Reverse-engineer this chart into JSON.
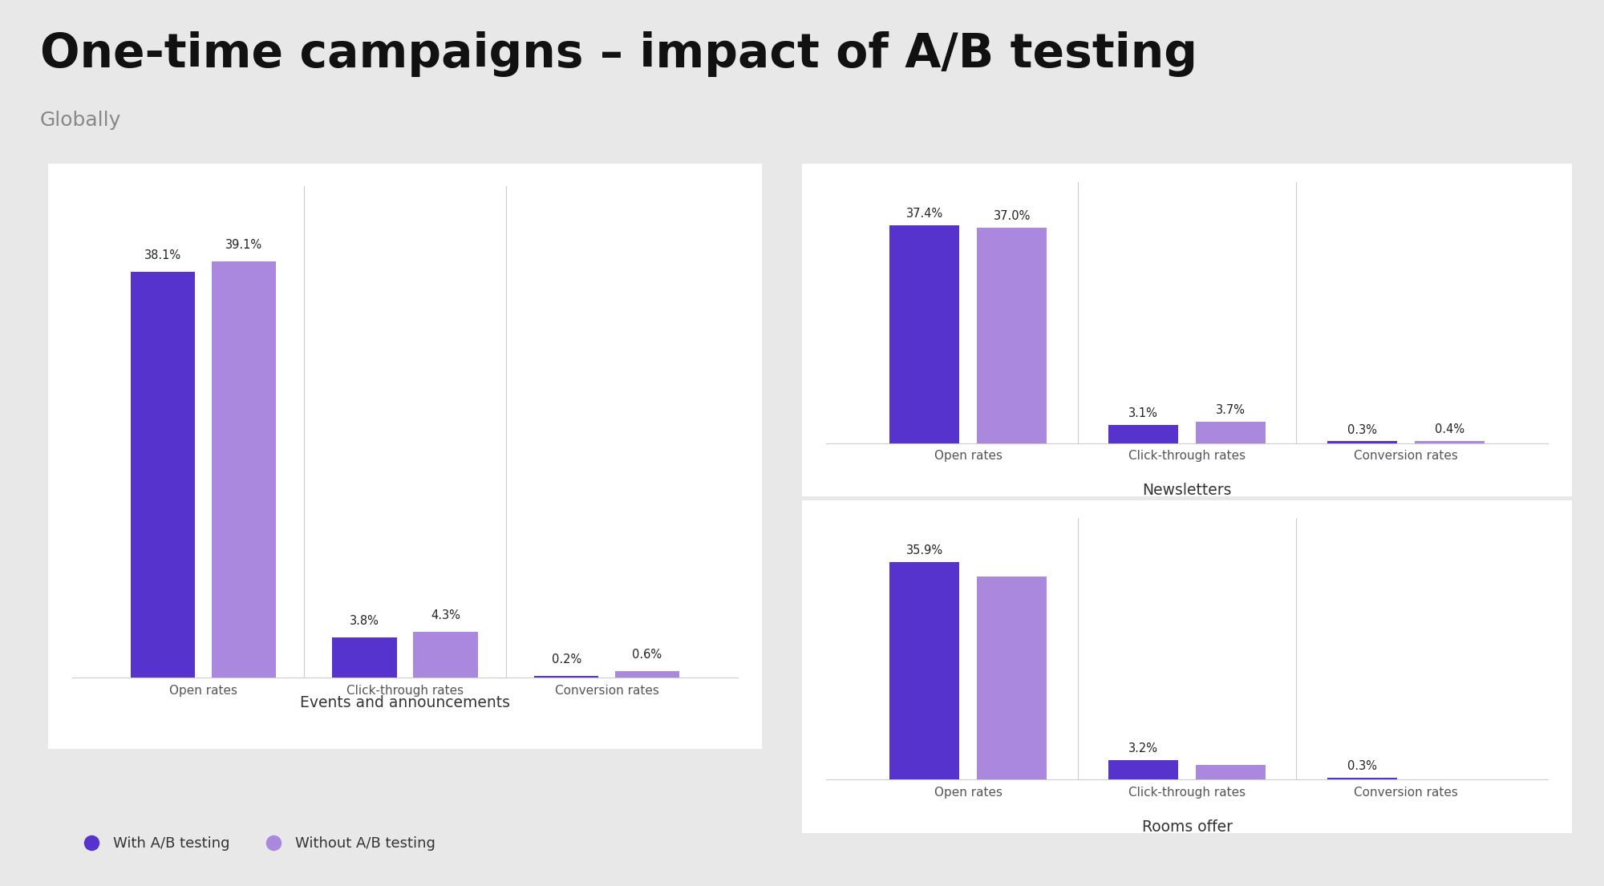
{
  "title": "One-time campaigns – impact of A/B testing",
  "subtitle": "Globally",
  "background_color": "#e8e8e8",
  "color_with": "#5533cc",
  "color_without": "#aa88dd",
  "legend_with": "With A/B testing",
  "legend_without": "Without A/B testing",
  "panels": [
    {
      "title": "Events and announcements",
      "groups": [
        "Open rates",
        "Click-through rates",
        "Conversion rates"
      ],
      "with_ab": [
        38.1,
        3.8,
        0.2
      ],
      "without_ab": [
        39.1,
        4.3,
        0.6
      ],
      "with_labels": [
        "38.1%",
        "3.8%",
        "0.2%"
      ],
      "without_labels": [
        "39.1%",
        "4.3%",
        "0.6%"
      ]
    },
    {
      "title": "Newsletters",
      "groups": [
        "Open rates",
        "Click-through rates",
        "Conversion rates"
      ],
      "with_ab": [
        37.4,
        3.1,
        0.3
      ],
      "without_ab": [
        37.0,
        3.7,
        0.4
      ],
      "with_labels": [
        "37.4%",
        "3.1%",
        "0.3%"
      ],
      "without_labels": [
        "37.0%",
        "3.7%",
        "0.4%"
      ]
    },
    {
      "title": "Rooms offer",
      "groups": [
        "Open rates",
        "Click-through rates",
        "Conversion rates"
      ],
      "with_ab": [
        35.9,
        3.2,
        0.3
      ],
      "without_ab": [
        33.5,
        2.45,
        0.0
      ],
      "with_labels": [
        "35.9%",
        "3.2%",
        "0.3%"
      ],
      "without_labels": [
        "",
        "",
        ""
      ]
    }
  ]
}
